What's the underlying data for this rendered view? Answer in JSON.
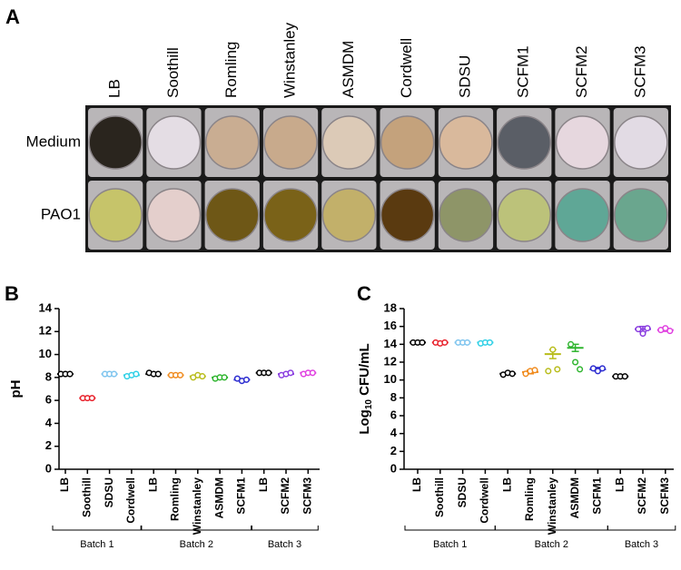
{
  "panel_a": {
    "label": "A",
    "columns": [
      "LB",
      "Soothill",
      "Romling",
      "Winstanley",
      "ASMDM",
      "Cordwell",
      "SDSU",
      "SCFM1",
      "SCFM2",
      "SCFM3"
    ],
    "rows": [
      "Medium",
      "PAO1"
    ],
    "well_colors": [
      [
        "#2a251e",
        "#e4dde4",
        "#c9ad92",
        "#c8aa8c",
        "#dccab7",
        "#c4a27c",
        "#d9b99c",
        "#5a5e66",
        "#e6d7de",
        "#e2dbe4"
      ],
      [
        "#c6c46a",
        "#e4cfcc",
        "#6e5716",
        "#7a6218",
        "#c2b06a",
        "#5a3a10",
        "#8e9568",
        "#bcc27a",
        "#5fa796",
        "#6aa68e"
      ]
    ]
  },
  "chart_data": [
    {
      "type": "dot",
      "label": "B",
      "ylabel": {
        "base": "pH"
      },
      "ylim": [
        0,
        14
      ],
      "yticks": [
        0,
        2,
        4,
        6,
        8,
        10,
        12,
        14
      ],
      "groups": [
        {
          "label": "Batch 1",
          "categories": [
            "LB",
            "Soothill",
            "SDSU",
            "Cordwell"
          ],
          "colors": [
            "#000000",
            "#e8202a",
            "#7ec4ee",
            "#2fd0e6"
          ],
          "values": [
            [
              8.3,
              8.3,
              8.3
            ],
            [
              6.2,
              6.2,
              6.2
            ],
            [
              8.3,
              8.3,
              8.3
            ],
            [
              8.1,
              8.2,
              8.3
            ]
          ],
          "means": [
            8.3,
            6.2,
            8.3,
            8.2
          ]
        },
        {
          "label": "Batch 2",
          "categories": [
            "LB",
            "Romling",
            "Winstanley",
            "ASMDM",
            "SCFM1"
          ],
          "colors": [
            "#000000",
            "#f08a1c",
            "#b8bc1a",
            "#2fb52f",
            "#2a2ad0"
          ],
          "values": [
            [
              8.4,
              8.3,
              8.3
            ],
            [
              8.2,
              8.2,
              8.2
            ],
            [
              8.0,
              8.2,
              8.1
            ],
            [
              7.9,
              8.0,
              8.0
            ],
            [
              7.9,
              7.7,
              7.8
            ]
          ],
          "means": [
            8.3,
            8.2,
            8.1,
            8.0,
            7.8
          ]
        },
        {
          "label": "Batch 3",
          "categories": [
            "LB",
            "SCFM2",
            "SCFM3"
          ],
          "colors": [
            "#000000",
            "#8a3ee0",
            "#e040e0"
          ],
          "values": [
            [
              8.4,
              8.4,
              8.4
            ],
            [
              8.2,
              8.3,
              8.4
            ],
            [
              8.3,
              8.4,
              8.4
            ]
          ],
          "means": [
            8.4,
            8.3,
            8.4
          ]
        }
      ]
    },
    {
      "type": "dot",
      "label": "C",
      "ylabel": {
        "base": "Log",
        "subscript": "10",
        "rest": " CFU/mL"
      },
      "ylim": [
        0,
        18
      ],
      "yticks": [
        0,
        2,
        4,
        6,
        8,
        10,
        12,
        14,
        16,
        18
      ],
      "groups": [
        {
          "label": "Batch 1",
          "categories": [
            "LB",
            "Soothill",
            "SDSU",
            "Cordwell"
          ],
          "colors": [
            "#000000",
            "#e8202a",
            "#7ec4ee",
            "#2fd0e6"
          ],
          "values": [
            [
              14.2,
              14.2,
              14.2
            ],
            [
              14.2,
              14.1,
              14.2
            ],
            [
              14.2,
              14.2,
              14.2
            ],
            [
              14.1,
              14.2,
              14.2
            ]
          ],
          "means": [
            14.2,
            14.2,
            14.2,
            14.2
          ],
          "errors": [
            0.05,
            0.05,
            0.05,
            0.05
          ]
        },
        {
          "label": "Batch 2",
          "categories": [
            "LB",
            "Romling",
            "Winstanley",
            "ASMDM",
            "SCFM1"
          ],
          "colors": [
            "#000000",
            "#f08a1c",
            "#b8bc1a",
            "#2fb52f",
            "#2a2ad0"
          ],
          "values": [
            [
              10.6,
              10.8,
              10.7
            ],
            [
              10.7,
              11.0,
              11.1
            ],
            [
              11.0,
              13.4,
              11.2
            ],
            [
              14.0,
              12.0,
              11.2
            ],
            [
              11.3,
              11.0,
              11.3
            ]
          ],
          "means": [
            10.7,
            10.9,
            12.9,
            13.6,
            11.2
          ],
          "errors": [
            0.1,
            0.2,
            0.5,
            0.4,
            0.2
          ]
        },
        {
          "label": "Batch 3",
          "categories": [
            "LB",
            "SCFM2",
            "SCFM3"
          ],
          "colors": [
            "#000000",
            "#8a3ee0",
            "#e040e0"
          ],
          "values": [
            [
              10.4,
              10.4,
              10.4
            ],
            [
              15.7,
              15.2,
              15.8
            ],
            [
              15.6,
              15.8,
              15.5
            ]
          ],
          "means": [
            10.4,
            15.7,
            15.6
          ],
          "errors": [
            0.05,
            0.3,
            0.15
          ]
        }
      ]
    }
  ]
}
